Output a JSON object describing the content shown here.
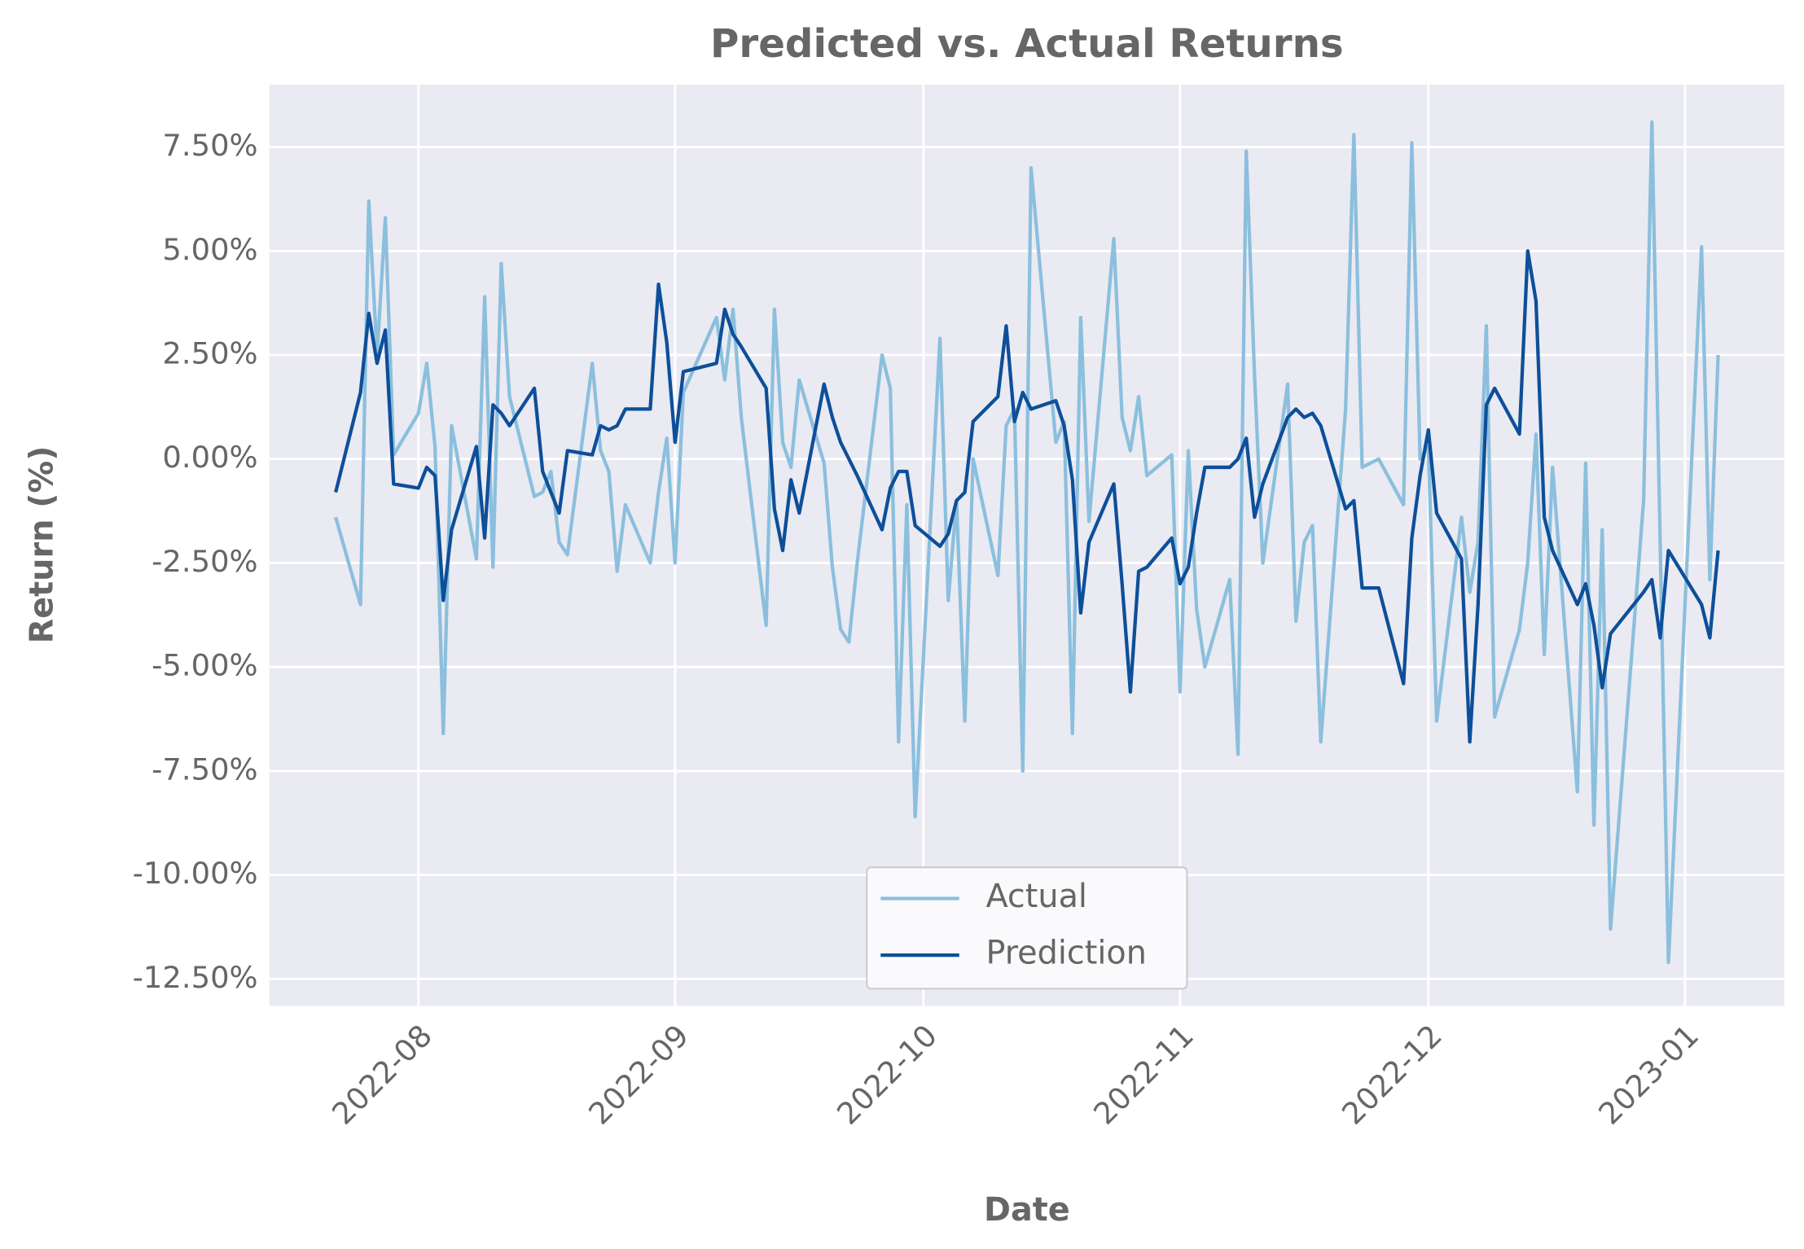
{
  "chart_data": {
    "type": "line",
    "title": "Predicted vs. Actual Returns",
    "x_label": "Date",
    "y_label": "Return (%)",
    "x": [
      19195,
      19198,
      19199,
      19200,
      19201,
      19202,
      19205,
      19206,
      19207,
      19208,
      19209,
      19212,
      19213,
      19214,
      19215,
      19216,
      19219,
      19220,
      19221,
      19222,
      19223,
      19226,
      19227,
      19228,
      19229,
      19230,
      19233,
      19234,
      19235,
      19236,
      19237,
      19241,
      19242,
      19243,
      19244,
      19247,
      19248,
      19249,
      19250,
      19251,
      19254,
      19255,
      19256,
      19257,
      19258,
      19261,
      19262,
      19263,
      19264,
      19265,
      19268,
      19269,
      19270,
      19271,
      19272,
      19275,
      19276,
      19277,
      19278,
      19279,
      19282,
      19283,
      19284,
      19285,
      19286,
      19289,
      19290,
      19291,
      19292,
      19293,
      19296,
      19297,
      19298,
      19299,
      19300,
      19303,
      19304,
      19305,
      19306,
      19307,
      19310,
      19311,
      19312,
      19313,
      19314,
      19317,
      19318,
      19319,
      19321,
      19324,
      19325,
      19326,
      19327,
      19328,
      19331,
      19332,
      19333,
      19334,
      19335,
      19338,
      19339,
      19340,
      19341,
      19342,
      19345,
      19346,
      19347,
      19348,
      19349,
      19353,
      19354,
      19355,
      19356,
      19360,
      19361,
      19362
    ],
    "series": [
      {
        "name": "Actual",
        "color": "#8bbfdd",
        "values": [
          -1.4,
          -3.5,
          6.2,
          2.5,
          5.8,
          0.1,
          1.1,
          2.3,
          0.3,
          -6.6,
          0.8,
          -2.4,
          3.9,
          -2.6,
          4.7,
          1.5,
          -0.9,
          -0.8,
          -0.3,
          -2.0,
          -2.3,
          2.3,
          0.2,
          -0.3,
          -2.7,
          -1.1,
          -2.5,
          -0.8,
          0.5,
          -2.5,
          1.6,
          3.4,
          1.9,
          3.6,
          1.0,
          -4.0,
          3.6,
          0.4,
          -0.2,
          1.9,
          -0.1,
          -2.6,
          -4.1,
          -4.4,
          -2.5,
          2.5,
          1.7,
          -6.8,
          -1.1,
          -8.6,
          2.9,
          -3.4,
          -1.0,
          -6.3,
          0.0,
          -2.8,
          0.8,
          1.2,
          -7.5,
          7.0,
          0.4,
          0.9,
          -6.6,
          3.4,
          -1.5,
          5.3,
          1.0,
          0.2,
          1.5,
          -0.4,
          0.1,
          -5.6,
          0.2,
          -3.6,
          -5.0,
          -2.9,
          -7.1,
          7.4,
          2.0,
          -2.5,
          1.8,
          -3.9,
          -2.0,
          -1.6,
          -6.8,
          1.2,
          7.8,
          -0.2,
          0.0,
          -1.1,
          7.6,
          0.0,
          0.3,
          -6.3,
          -1.4,
          -3.2,
          -2.0,
          3.2,
          -6.2,
          -4.1,
          -2.5,
          0.6,
          -4.7,
          -0.2,
          -8.0,
          -0.1,
          -8.8,
          -1.7,
          -11.3,
          -1.0,
          8.1,
          -2.0,
          -12.1,
          5.1,
          -2.9,
          2.5
        ]
      },
      {
        "name": "Prediction",
        "color": "#0d4f99",
        "values": [
          -0.8,
          1.6,
          3.5,
          2.3,
          3.1,
          -0.6,
          -0.7,
          -0.2,
          -0.4,
          -3.4,
          -1.7,
          0.3,
          -1.9,
          1.3,
          1.1,
          0.8,
          1.7,
          -0.3,
          -0.8,
          -1.3,
          0.2,
          0.1,
          0.8,
          0.7,
          0.8,
          1.2,
          1.2,
          4.2,
          2.8,
          0.4,
          2.1,
          2.3,
          3.6,
          3.0,
          2.7,
          1.7,
          -1.2,
          -2.2,
          -0.5,
          -1.3,
          1.8,
          1.0,
          0.4,
          0.0,
          -0.4,
          -1.7,
          -0.7,
          -0.3,
          -0.3,
          -1.6,
          -2.1,
          -1.8,
          -1.0,
          -0.8,
          0.9,
          1.5,
          3.2,
          0.9,
          1.6,
          1.2,
          1.4,
          0.8,
          -0.5,
          -3.7,
          -2.0,
          -0.6,
          -3.0,
          -5.6,
          -2.7,
          -2.6,
          -1.9,
          -3.0,
          -2.6,
          -1.3,
          -0.2,
          -0.2,
          0.0,
          0.5,
          -1.4,
          -0.6,
          1.0,
          1.2,
          1.0,
          1.1,
          0.8,
          -1.2,
          -1.0,
          -3.1,
          -3.1,
          -5.4,
          -1.9,
          -0.4,
          0.7,
          -1.3,
          -2.4,
          -6.8,
          -3.5,
          1.3,
          1.7,
          0.6,
          5.0,
          3.8,
          -1.4,
          -2.2,
          -3.5,
          -3.0,
          -4.0,
          -5.5,
          -4.2,
          -3.2,
          -2.9,
          -4.3,
          -2.2,
          -3.5,
          -4.3,
          -2.2
        ]
      }
    ],
    "xlim": [
      19187,
      19370
    ],
    "xticks": [
      {
        "value": 19205,
        "label": "2022-08"
      },
      {
        "value": 19236,
        "label": "2022-09"
      },
      {
        "value": 19266,
        "label": "2022-10"
      },
      {
        "value": 19297,
        "label": "2022-11"
      },
      {
        "value": 19327,
        "label": "2022-12"
      },
      {
        "value": 19358,
        "label": "2023-01"
      }
    ],
    "ylim": [
      -13.15,
      9.0
    ],
    "yticks": [
      {
        "value": 7.5,
        "label": "7.50%"
      },
      {
        "value": 5,
        "label": "5.00%"
      },
      {
        "value": 2.5,
        "label": "2.50%"
      },
      {
        "value": 0,
        "label": "0.00%"
      },
      {
        "value": -2.5,
        "label": "-2.50%"
      },
      {
        "value": -5,
        "label": "-5.00%"
      },
      {
        "value": -7.5,
        "label": "-7.50%"
      },
      {
        "value": -10,
        "label": "-10.00%"
      },
      {
        "value": -12.5,
        "label": "-12.50%"
      }
    ],
    "grid": true,
    "legend": "lower center"
  }
}
